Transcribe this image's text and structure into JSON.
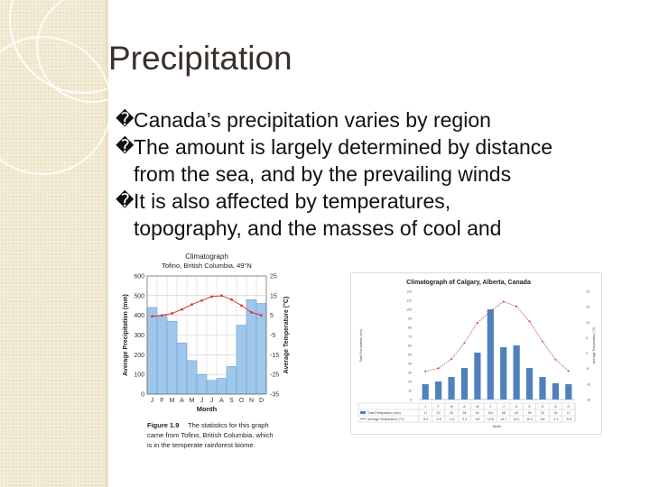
{
  "slide": {
    "title": "Precipitation",
    "bullet_glyph": "�",
    "bullets": [
      {
        "lines": [
          "Canada’s precipitation varies by region"
        ]
      },
      {
        "lines": [
          "The amount is largely determined by distance",
          "from the sea, and by the prevailing winds"
        ]
      },
      {
        "lines": [
          "It is also affected by temperatures,",
          "topography, and the masses of cool and"
        ]
      }
    ]
  },
  "chart_data": [
    {
      "type": "bar",
      "title": "Climatograph",
      "subtitle": "Tofino, British Columbia, 49°N",
      "xlabel": "Month",
      "ylabel": "Average Precipitation (mm)",
      "y2label": "Average Temperature (°C)",
      "categories": [
        "J",
        "F",
        "M",
        "A",
        "M",
        "J",
        "J",
        "A",
        "S",
        "O",
        "N",
        "D"
      ],
      "ylim": [
        0,
        600
      ],
      "yticks": [
        0,
        100,
        200,
        300,
        400,
        500,
        600
      ],
      "y2lim": [
        -35,
        25
      ],
      "y2ticks": [
        25,
        15,
        5,
        -5,
        -15,
        -25,
        -35
      ],
      "series": [
        {
          "values": [
            440,
            400,
            370,
            260,
            170,
            100,
            70,
            80,
            140,
            350,
            480,
            460
          ]
        },
        {
          "type": "line",
          "values": [
            4.5,
            5,
            6,
            8,
            10.5,
            12.5,
            14.5,
            15,
            13,
            10,
            6.5,
            5
          ]
        }
      ],
      "colors": {
        "bars": "#9fc7ec",
        "bar_edge": "#6f9fcf",
        "line": "#d93a35"
      },
      "grid": true,
      "caption": {
        "label": "Figure 1.9",
        "lines": [
          "The statistics for this graph",
          "came from Tofino, British Columbia, which",
          "is in the temperate rainforest biome."
        ]
      }
    },
    {
      "type": "bar",
      "title": "Climatograph of Calgary, Alberta, Canada",
      "xlabel": "Month",
      "ylabel": "Total Precipitation (mm)",
      "y2label": "Average Temperature (°C)",
      "categories": [
        "J",
        "F",
        "M",
        "A",
        "M",
        "J",
        "J",
        "A",
        "S",
        "O",
        "N",
        "D"
      ],
      "ylim": [
        0,
        120
      ],
      "yticks": [
        0,
        10,
        20,
        30,
        40,
        50,
        60,
        70,
        80,
        90,
        100,
        110,
        120
      ],
      "y2lim": [
        -15,
        20
      ],
      "y2ticks": [
        20,
        15,
        10,
        5,
        0,
        -5,
        -10,
        -15
      ],
      "series": [
        {
          "name": "Total Precipitation (mm)",
          "values": [
            17,
            20,
            25,
            35,
            52,
            100,
            58,
            60,
            35,
            25,
            18,
            17
          ]
        },
        {
          "name": "Average Temperature (°C)",
          "type": "line",
          "values": [
            -5.9,
            -4.9,
            -1.9,
            3.3,
            9.8,
            13.5,
            16.7,
            15.1,
            10.3,
            3.8,
            -2.1,
            -5.8
          ]
        }
      ],
      "colors": {
        "bars": "#4f81bd",
        "line": "#c0504d"
      },
      "grid": false,
      "table_rows": [
        "Total Precipitation (mm)",
        "Average Temperature (°C)"
      ]
    }
  ]
}
